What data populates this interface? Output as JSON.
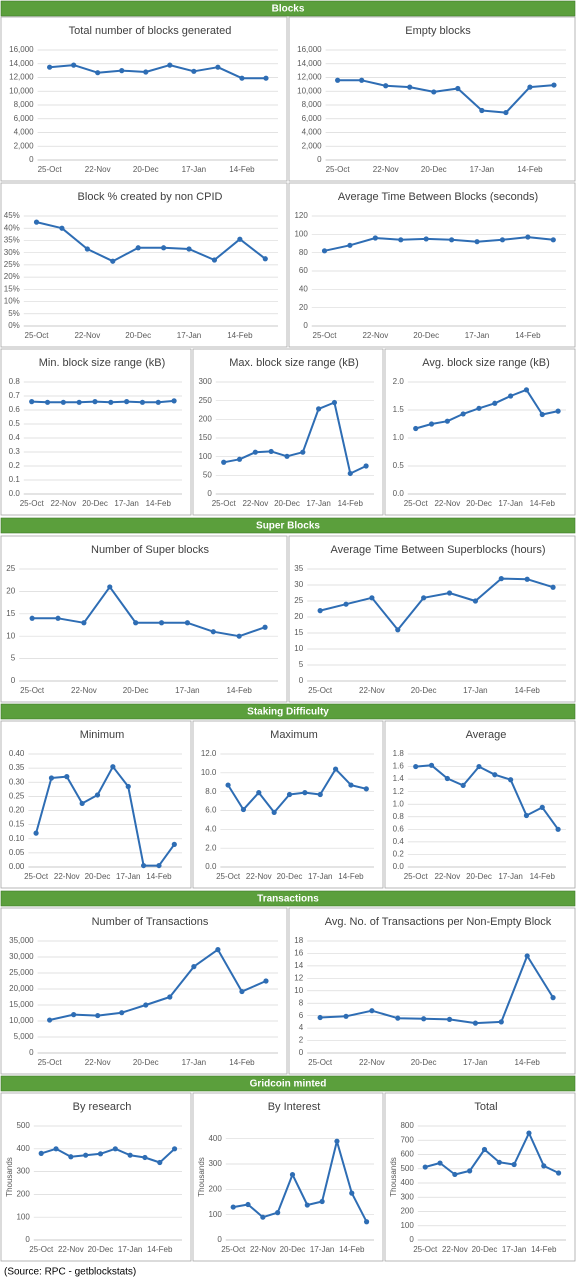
{
  "sections": [
    "Blocks",
    "Super Blocks",
    "Staking Difficulty",
    "Transactions",
    "Gridcoin minted"
  ],
  "source": "(Source: RPC - getblockstats)",
  "chart_data": [
    {
      "type": "line",
      "title": "Total number of blocks generated",
      "color": "#2e6db4",
      "grid": true,
      "categories": [
        "25-Oct",
        null,
        "22-Nov",
        null,
        "20-Dec",
        null,
        "17-Jan",
        null,
        "14-Feb",
        null
      ],
      "values": [
        13500,
        13800,
        12700,
        13000,
        12800,
        13800,
        12900,
        13500,
        11900,
        11900
      ],
      "ylim": [
        0,
        16000
      ],
      "yticks": [
        0,
        {
          "value": 2000,
          "label": "2,000"
        },
        {
          "value": 4000,
          "label": "4,000"
        },
        {
          "value": 6000,
          "label": "6,000"
        },
        {
          "value": 8000,
          "label": "8,000"
        },
        {
          "value": 10000,
          "label": "10,000"
        },
        {
          "value": 12000,
          "label": "12,000"
        },
        {
          "value": 14000,
          "label": "14,000"
        },
        {
          "value": 16000,
          "label": "16,000"
        }
      ]
    },
    {
      "type": "line",
      "title": "Empty blocks",
      "color": "#2e6db4",
      "grid": true,
      "categories": [
        "25-Oct",
        null,
        "22-Nov",
        null,
        "20-Dec",
        null,
        "17-Jan",
        null,
        "14-Feb",
        null
      ],
      "values": [
        11600,
        11600,
        10800,
        10600,
        9900,
        10400,
        7200,
        6900,
        10600,
        10900
      ],
      "ylim": [
        0,
        16000
      ],
      "yticks": [
        0,
        {
          "value": 2000,
          "label": "2,000"
        },
        {
          "value": 4000,
          "label": "4,000"
        },
        {
          "value": 6000,
          "label": "6,000"
        },
        {
          "value": 8000,
          "label": "8,000"
        },
        {
          "value": 10000,
          "label": "10,000"
        },
        {
          "value": 12000,
          "label": "12,000"
        },
        {
          "value": 14000,
          "label": "14,000"
        },
        {
          "value": 16000,
          "label": "16,000"
        }
      ]
    },
    {
      "type": "line",
      "title": "Block % created by non CPID",
      "color": "#2e6db4",
      "grid": true,
      "categories": [
        "25-Oct",
        null,
        "22-Nov",
        null,
        "20-Dec",
        null,
        "17-Jan",
        null,
        "14-Feb",
        null
      ],
      "values": [
        42.5,
        40,
        31.5,
        26.5,
        32,
        32,
        31.5,
        27,
        35.5,
        27.5
      ],
      "ylim": [
        0,
        45
      ],
      "yticks": [
        {
          "value": 0,
          "label": "0%"
        },
        {
          "value": 5,
          "label": "5%"
        },
        {
          "value": 10,
          "label": "10%"
        },
        {
          "value": 15,
          "label": "15%"
        },
        {
          "value": 20,
          "label": "20%"
        },
        {
          "value": 25,
          "label": "25%"
        },
        {
          "value": 30,
          "label": "30%"
        },
        {
          "value": 35,
          "label": "35%"
        },
        {
          "value": 40,
          "label": "40%"
        },
        {
          "value": 45,
          "label": "45%"
        }
      ]
    },
    {
      "type": "line",
      "title": "Average Time Between Blocks (seconds)",
      "color": "#2e6db4",
      "grid": true,
      "categories": [
        "25-Oct",
        null,
        "22-Nov",
        null,
        "20-Dec",
        null,
        "17-Jan",
        null,
        "14-Feb",
        null
      ],
      "values": [
        82,
        88,
        96,
        94,
        95,
        94,
        92,
        94,
        97,
        94
      ],
      "ylim": [
        0,
        120
      ],
      "yticks": [
        0,
        20,
        40,
        60,
        80,
        100,
        120
      ]
    },
    {
      "type": "line",
      "title": "Min. block size range (kB)",
      "color": "#2e6db4",
      "grid": true,
      "categories": [
        "25-Oct",
        null,
        "22-Nov",
        null,
        "20-Dec",
        null,
        "17-Jan",
        null,
        "14-Feb",
        null
      ],
      "values": [
        0.66,
        0.655,
        0.655,
        0.655,
        0.66,
        0.655,
        0.66,
        0.655,
        0.655,
        0.665
      ],
      "ylim": [
        0,
        0.8
      ],
      "yticks": [
        {
          "value": 0,
          "label": "0.0"
        },
        0.1,
        0.2,
        0.3,
        0.4,
        0.5,
        0.6,
        0.7,
        0.8
      ]
    },
    {
      "type": "line",
      "title": "Max. block size range (kB)",
      "color": "#2e6db4",
      "grid": true,
      "categories": [
        "25-Oct",
        null,
        "22-Nov",
        null,
        "20-Dec",
        null,
        "17-Jan",
        null,
        "14-Feb",
        null
      ],
      "values": [
        85,
        93,
        112,
        114,
        101,
        112,
        228,
        245,
        55,
        75
      ],
      "ylim": [
        0,
        300
      ],
      "yticks": [
        0,
        50,
        100,
        150,
        200,
        250,
        300
      ]
    },
    {
      "type": "line",
      "title": "Avg. block size range (kB)",
      "color": "#2e6db4",
      "grid": true,
      "categories": [
        "25-Oct",
        null,
        "22-Nov",
        null,
        "20-Dec",
        null,
        "17-Jan",
        null,
        "14-Feb",
        null
      ],
      "values": [
        1.17,
        1.25,
        1.3,
        1.43,
        1.53,
        1.62,
        1.75,
        1.86,
        1.42,
        1.48
      ],
      "ylim": [
        0,
        2
      ],
      "yticks": [
        {
          "value": 0,
          "label": "0.0"
        },
        0.5,
        {
          "value": 1,
          "label": "1.0"
        },
        1.5,
        {
          "value": 2,
          "label": "2.0"
        }
      ]
    },
    {
      "type": "line",
      "title": "Number of Super blocks",
      "color": "#2e6db4",
      "grid": true,
      "categories": [
        "25-Oct",
        null,
        "22-Nov",
        null,
        "20-Dec",
        null,
        "17-Jan",
        null,
        "14-Feb",
        null
      ],
      "values": [
        14,
        14,
        13,
        21,
        13,
        13,
        13,
        11,
        10,
        12
      ],
      "ylim": [
        0,
        25
      ],
      "yticks": [
        0,
        5,
        10,
        15,
        20,
        25
      ]
    },
    {
      "type": "line",
      "title": "Average Time Between Superblocks (hours)",
      "color": "#2e6db4",
      "grid": true,
      "categories": [
        "25-Oct",
        null,
        "22-Nov",
        null,
        "20-Dec",
        null,
        "17-Jan",
        null,
        "14-Feb",
        null
      ],
      "values": [
        22,
        24,
        26,
        16,
        26,
        27.5,
        25,
        32,
        31.8,
        29.3
      ],
      "ylim": [
        0,
        35
      ],
      "yticks": [
        0,
        5,
        10,
        15,
        20,
        25,
        30,
        35
      ]
    },
    {
      "type": "line",
      "title": "Minimum",
      "color": "#2e6db4",
      "grid": true,
      "categories": [
        "25-Oct",
        null,
        "22-Nov",
        null,
        "20-Dec",
        null,
        "17-Jan",
        null,
        "14-Feb",
        null
      ],
      "values": [
        0.12,
        0.315,
        0.32,
        0.225,
        0.255,
        0.355,
        0.285,
        0.005,
        0.005,
        0.08
      ],
      "ylim": [
        0,
        0.4
      ],
      "yticks": [
        {
          "value": 0,
          "label": "0.00"
        },
        0.05,
        {
          "value": 0.1,
          "label": "0.10"
        },
        0.15,
        {
          "value": 0.2,
          "label": "0.20"
        },
        0.25,
        {
          "value": 0.3,
          "label": "0.30"
        },
        0.35,
        {
          "value": 0.4,
          "label": "0.40"
        }
      ]
    },
    {
      "type": "line",
      "title": "Maximum",
      "color": "#2e6db4",
      "grid": true,
      "categories": [
        "25-Oct",
        null,
        "22-Nov",
        null,
        "20-Dec",
        null,
        "17-Jan",
        null,
        "14-Feb",
        null
      ],
      "values": [
        8.7,
        6.1,
        7.9,
        5.8,
        7.7,
        7.9,
        7.7,
        10.4,
        8.7,
        8.3
      ],
      "ylim": [
        0,
        12
      ],
      "yticks": [
        {
          "value": 0,
          "label": "0.0"
        },
        {
          "value": 2,
          "label": "2.0"
        },
        {
          "value": 4,
          "label": "4.0"
        },
        {
          "value": 6,
          "label": "6.0"
        },
        {
          "value": 8,
          "label": "8.0"
        },
        {
          "value": 10,
          "label": "10.0"
        },
        {
          "value": 12,
          "label": "12.0"
        }
      ]
    },
    {
      "type": "line",
      "title": "Average",
      "color": "#2e6db4",
      "grid": true,
      "categories": [
        "25-Oct",
        null,
        "22-Nov",
        null,
        "20-Dec",
        null,
        "17-Jan",
        null,
        "14-Feb",
        null
      ],
      "values": [
        1.6,
        1.62,
        1.41,
        1.3,
        1.6,
        1.47,
        1.39,
        0.82,
        0.95,
        0.6
      ],
      "ylim": [
        0,
        1.8
      ],
      "yticks": [
        {
          "value": 0,
          "label": "0.0"
        },
        0.2,
        0.4,
        0.6,
        0.8,
        {
          "value": 1,
          "label": "1.0"
        },
        1.2,
        1.4,
        1.6,
        1.8
      ]
    },
    {
      "type": "line",
      "title": "Number of Transactions",
      "color": "#2e6db4",
      "grid": true,
      "categories": [
        "25-Oct",
        null,
        "22-Nov",
        null,
        "20-Dec",
        null,
        "17-Jan",
        null,
        "14-Feb",
        null
      ],
      "values": [
        10300,
        12000,
        11700,
        12600,
        15000,
        17500,
        27000,
        32300,
        19200,
        22500
      ],
      "ylim": [
        0,
        35000
      ],
      "yticks": [
        0,
        {
          "value": 5000,
          "label": "5,000"
        },
        {
          "value": 10000,
          "label": "10,000"
        },
        {
          "value": 15000,
          "label": "15,000"
        },
        {
          "value": 20000,
          "label": "20,000"
        },
        {
          "value": 25000,
          "label": "25,000"
        },
        {
          "value": 30000,
          "label": "30,000"
        },
        {
          "value": 35000,
          "label": "35,000"
        }
      ]
    },
    {
      "type": "line",
      "title": "Avg. No. of Transactions per Non-Empty Block",
      "color": "#2e6db4",
      "grid": true,
      "categories": [
        "25-Oct",
        null,
        "22-Nov",
        null,
        "20-Dec",
        null,
        "17-Jan",
        null,
        "14-Feb",
        null
      ],
      "values": [
        5.7,
        5.9,
        6.8,
        5.6,
        5.5,
        5.4,
        4.8,
        5.0,
        15.6,
        8.9
      ],
      "ylim": [
        0,
        18
      ],
      "yticks": [
        0,
        2,
        4,
        6,
        8,
        10,
        12,
        14,
        16,
        18
      ]
    },
    {
      "type": "line",
      "title": "By research",
      "y_label": "Thousands",
      "color": "#2e6db4",
      "grid": true,
      "categories": [
        "25-Oct",
        null,
        "22-Nov",
        null,
        "20-Dec",
        null,
        "17-Jan",
        null,
        "14-Feb",
        null
      ],
      "values": [
        380,
        400,
        365,
        372,
        378,
        400,
        372,
        362,
        340,
        400
      ],
      "ylim": [
        0,
        500
      ],
      "yticks": [
        0,
        100,
        200,
        300,
        400,
        500
      ]
    },
    {
      "type": "line",
      "title": "By Interest",
      "y_label": "Thousands",
      "color": "#2e6db4",
      "grid": true,
      "categories": [
        "25-Oct",
        null,
        "22-Nov",
        null,
        "20-Dec",
        null,
        "17-Jan",
        null,
        "14-Feb",
        null
      ],
      "values": [
        130,
        140,
        90,
        108,
        258,
        138,
        152,
        390,
        185,
        72
      ],
      "ylim": [
        0,
        450
      ],
      "yticks": [
        0,
        100,
        200,
        300,
        400
      ]
    },
    {
      "type": "line",
      "title": "Total",
      "y_label": "Thousands",
      "color": "#2e6db4",
      "grid": true,
      "categories": [
        "25-Oct",
        null,
        "22-Nov",
        null,
        "20-Dec",
        null,
        "17-Jan",
        null,
        "14-Feb",
        null
      ],
      "values": [
        512,
        540,
        460,
        485,
        635,
        545,
        530,
        750,
        520,
        470
      ],
      "ylim": [
        0,
        800
      ],
      "yticks": [
        0,
        100,
        200,
        300,
        400,
        500,
        600,
        700,
        800
      ]
    }
  ]
}
